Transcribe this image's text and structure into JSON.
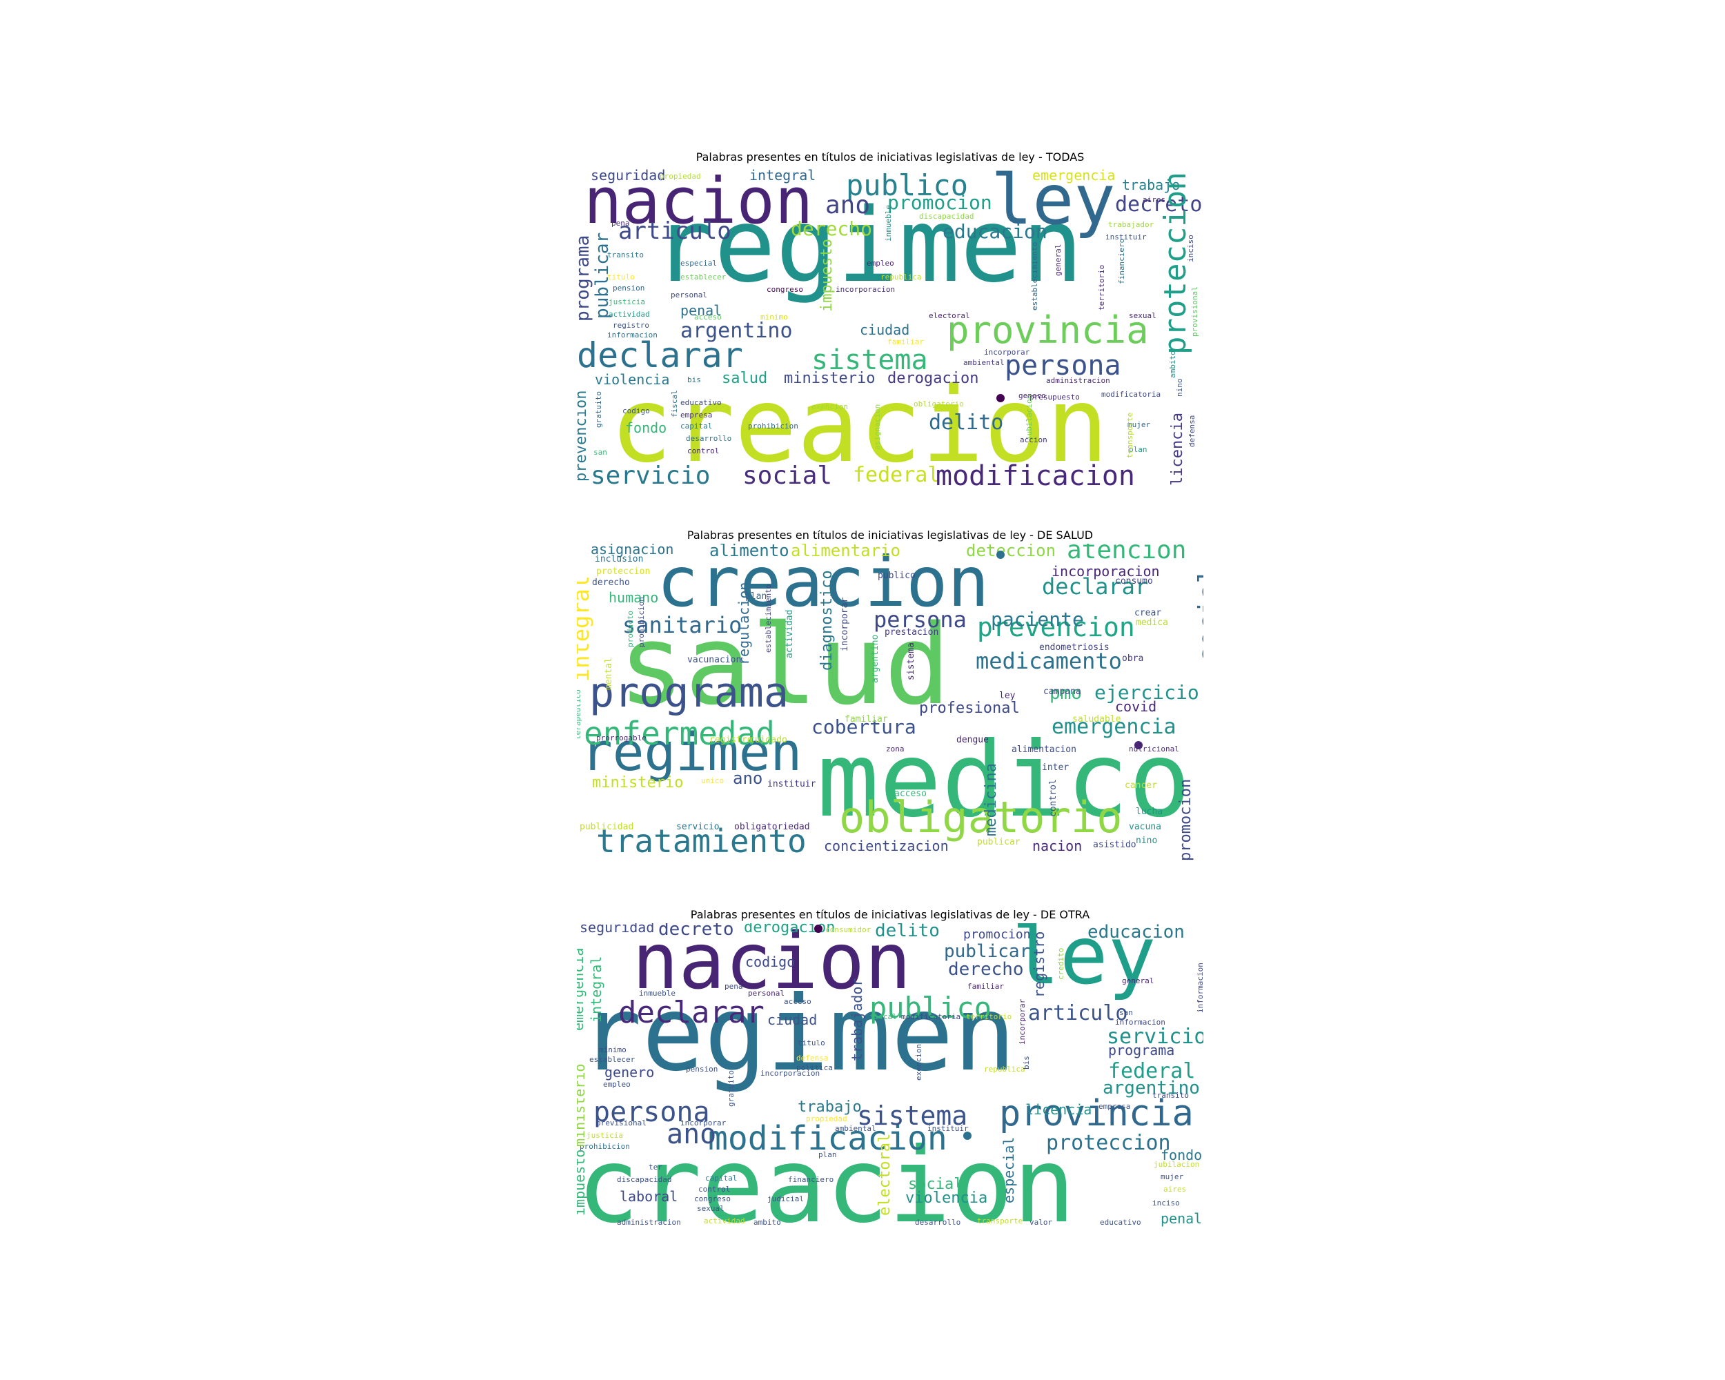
{
  "figure": {
    "panels": [
      {
        "title": "Palabras presentes en títulos de iniciativas legislativas de ley -  TODAS",
        "words": [
          "regimen",
          "creacion",
          "nacion",
          "ley",
          "provincia",
          "declarar",
          "sistema",
          "persona",
          "publico",
          "ano",
          "promocion",
          "decreto",
          "proteccion",
          "articulo",
          "derecho",
          "educacion",
          "argentino",
          "servicio",
          "social",
          "federal",
          "modificacion",
          "delito",
          "programa",
          "publicar",
          "seguridad",
          "integral",
          "emergencia",
          "trabajo",
          "ciudad",
          "penal",
          "salud",
          "ministerio",
          "derogacion",
          "violencia",
          "fondo",
          "prevencion",
          "licencia",
          "impuesto",
          "codigo",
          "empresa",
          "capital",
          "desarrollo",
          "control",
          "plan",
          "mujer",
          "nino",
          "propiedad",
          "discapacidad",
          "aires",
          "trabajador",
          "instituir",
          "inciso",
          "general",
          "financiero",
          "territorio",
          "sexual",
          "provisional",
          "pena",
          "transito",
          "especial",
          "empleo",
          "titulo",
          "establecer",
          "republica",
          "pension",
          "congreso",
          "incorporacion",
          "justicia",
          "personal",
          "actividad",
          "acceso",
          "minimo",
          "registro",
          "informacion",
          "familiar",
          "incorporar",
          "ambiental",
          "bis",
          "educativo",
          "exencion",
          "obligatorio",
          "gratuito",
          "asignacion",
          "accion",
          "jubilacion",
          "electoral",
          "genero",
          "presupuesto",
          "administracion",
          "transporte",
          "modificatoria",
          "san",
          "ambito",
          "defensa",
          "inmueble",
          "fiscal",
          "establecimiento",
          "prohibicion"
        ]
      },
      {
        "title": "Palabras presentes en títulos de iniciativas legislativas de ley -  DE SALUD",
        "words": [
          "salud",
          "medico",
          "creacion",
          "regimen",
          "programa",
          "obligatorio",
          "enfermedad",
          "tratamiento",
          "atencion",
          "prevencion",
          "social",
          "sanitario",
          "integral",
          "persona",
          "declarar",
          "medicamento",
          "paciente",
          "cobertura",
          "emergencia",
          "promocion",
          "ejercicio",
          "pmo",
          "profesional",
          "covid",
          "asignacion",
          "alimento",
          "alimentario",
          "deteccion",
          "incorporacion",
          "inclusion",
          "derecho",
          "proteccion",
          "humano",
          "publico",
          "plan",
          "consumo",
          "crear",
          "medica",
          "prestacion",
          "endometriosis",
          "obra",
          "vacunacion",
          "campana",
          "ley",
          "regulacion",
          "diagnostico",
          "actividad",
          "incorporar",
          "argentino",
          "sistema",
          "establecimiento",
          "prohibicion",
          "producto",
          "mental",
          "terapeutico",
          "prorrogable",
          "registro",
          "cuidado",
          "familiar",
          "saludable",
          "nutricional",
          "alimentacion",
          "dengue",
          "zona",
          "inter",
          "cancer",
          "control",
          "medicina",
          "acceso",
          "ministerio",
          "unico",
          "instituir",
          "ano",
          "lucha",
          "vacuna",
          "publicidad",
          "servicio",
          "obligatoriedad",
          "concientizacion",
          "publicar",
          "nacion",
          "asistido",
          "nino"
        ]
      },
      {
        "title": "Palabras presentes en títulos de iniciativas legislativas de ley -  DE OTRA",
        "words": [
          "regimen",
          "creacion",
          "nacion",
          "ley",
          "declarar",
          "publico",
          "modificacion",
          "provincia",
          "sistema",
          "persona",
          "ano",
          "articulo",
          "educacion",
          "servicio",
          "programa",
          "federal",
          "argentino",
          "proteccion",
          "seguridad",
          "decreto",
          "derogacion",
          "delito",
          "presupuesto",
          "consumidor",
          "accion",
          "promocion",
          "publicar",
          "derecho",
          "registro",
          "credito",
          "codigo",
          "general",
          "emergencia",
          "integral",
          "ministerio",
          "impuesto",
          "trabajador",
          "ciudad",
          "pena",
          "inmueble",
          "personal",
          "acceso",
          "familiar",
          "fiscal",
          "modificatoria",
          "territorio",
          "informacion",
          "san",
          "titulo",
          "minimo",
          "establecer",
          "defensa",
          "politica",
          "genero",
          "pension",
          "incorporacion",
          "empleo",
          "previsional",
          "incorporar",
          "justicia",
          "prohibicion",
          "trabajo",
          "propiedad",
          "ambiental",
          "instituir",
          "gratuito",
          "exencion",
          "republica",
          "bis",
          "licencia",
          "empresa",
          "transito",
          "fondo",
          "jubilacion",
          "mujer",
          "aires",
          "ter",
          "discapacidad",
          "capital",
          "control",
          "congreso",
          "sexual",
          "financiero",
          "judicial",
          "laboral",
          "social",
          "violencia",
          "especial",
          "electoral",
          "administracion",
          "actividad",
          "ambito",
          "desarrollo",
          "transporte",
          "valor",
          "educativo",
          "penal",
          "inciso",
          "plan"
        ]
      }
    ]
  }
}
